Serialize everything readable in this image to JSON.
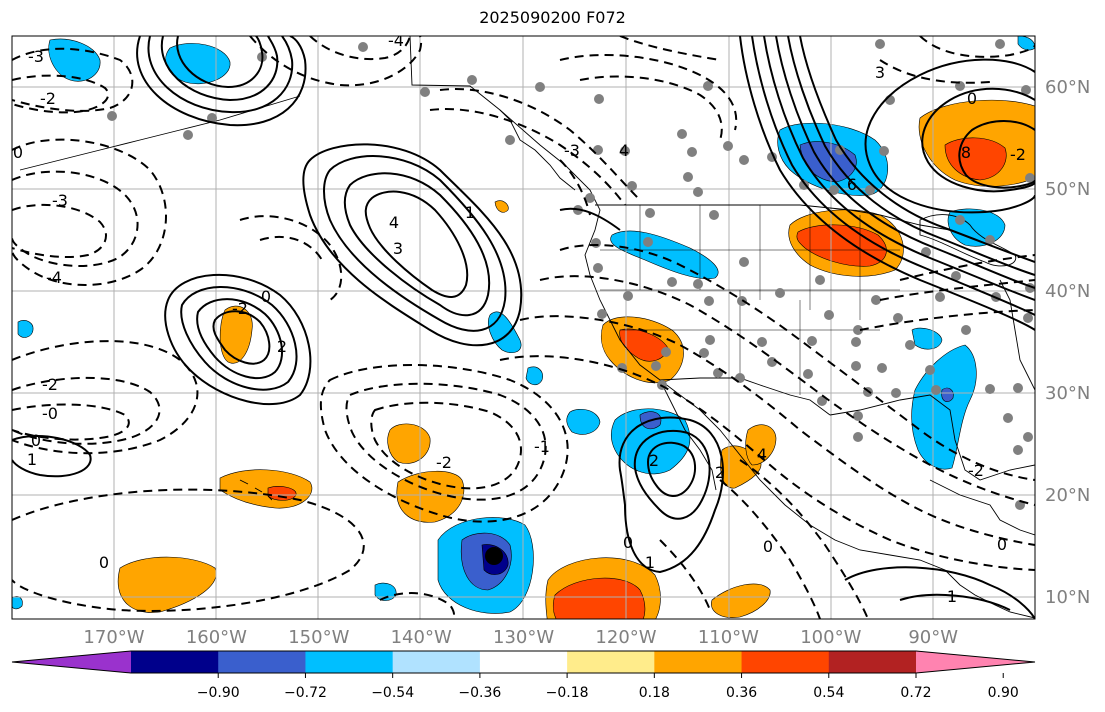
{
  "title": "2025090200 F072",
  "lon_ticks": [
    {
      "value": -170,
      "label": "170°W"
    },
    {
      "value": -160,
      "label": "160°W"
    },
    {
      "value": -150,
      "label": "150°W"
    },
    {
      "value": -140,
      "label": "140°W"
    },
    {
      "value": -130,
      "label": "130°W"
    },
    {
      "value": -120,
      "label": "120°W"
    },
    {
      "value": -110,
      "label": "110°W"
    },
    {
      "value": -100,
      "label": "100°W"
    },
    {
      "value": -90,
      "label": "90°W"
    }
  ],
  "lat_ticks": [
    {
      "value": 60,
      "label": "60°N"
    },
    {
      "value": 50,
      "label": "50°N"
    },
    {
      "value": 40,
      "label": "40°N"
    },
    {
      "value": 30,
      "label": "30°N"
    },
    {
      "value": 20,
      "label": "20°N"
    },
    {
      "value": 10,
      "label": "10°N"
    }
  ],
  "colorbar": {
    "colors": [
      "#9a32cd",
      "#00008b",
      "#3a5fcd",
      "#00bfff",
      "#b0e2ff",
      "#ffffff",
      "#ffec8b",
      "#ffa500",
      "#ff4500",
      "#b22222",
      "#ff83b0"
    ],
    "tick_labels": [
      "−0.90",
      "−0.72",
      "−0.54",
      "−0.36",
      "−0.18",
      "0.18",
      "0.36",
      "0.54",
      "0.72",
      "0.90"
    ]
  },
  "contour_labels": [
    {
      "text": "-3"
    },
    {
      "text": "-2"
    },
    {
      "text": "0"
    },
    {
      "text": "-3"
    },
    {
      "text": "-4"
    },
    {
      "text": "-2"
    },
    {
      "text": "-0"
    },
    {
      "text": "0"
    },
    {
      "text": "1"
    },
    {
      "text": "0"
    },
    {
      "text": "2"
    },
    {
      "text": "-2"
    },
    {
      "text": "4"
    },
    {
      "text": "3"
    },
    {
      "text": "-4"
    },
    {
      "text": "-3"
    },
    {
      "text": "4"
    },
    {
      "text": "0"
    },
    {
      "text": "6"
    },
    {
      "text": "0"
    },
    {
      "text": "8"
    },
    {
      "text": "-2"
    },
    {
      "text": "2"
    },
    {
      "text": "0"
    },
    {
      "text": "1"
    },
    {
      "text": "-2"
    },
    {
      "text": "-1"
    },
    {
      "text": "2"
    },
    {
      "text": "4"
    },
    {
      "text": "0"
    },
    {
      "text": "1"
    },
    {
      "text": "-2"
    },
    {
      "text": "0"
    },
    {
      "text": "1"
    },
    {
      "text": "3"
    }
  ],
  "colors": {
    "station": "#808080",
    "contour": "#000000",
    "grid": "#b0b0b0",
    "tick_label": "#808080"
  }
}
